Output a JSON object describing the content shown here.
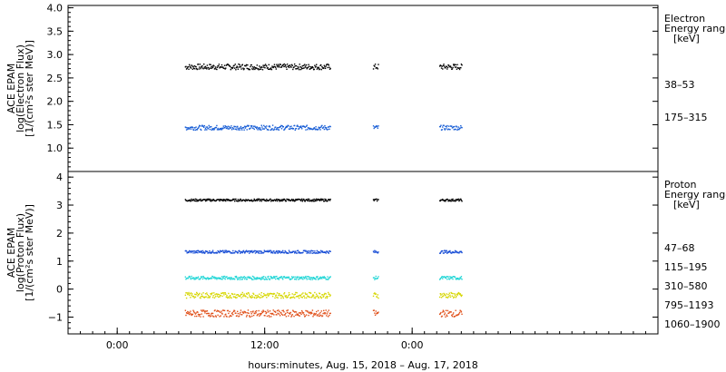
{
  "chart_data": [
    {
      "type": "scatter",
      "ylabel_lines": [
        "ACE EPAM",
        "log(Electron Flux)",
        "[1/(cm²s ster MeV)]"
      ],
      "ylim": [
        0.5,
        4.05
      ],
      "yticks": [
        "1.0",
        "1.5",
        "2.0",
        "2.5",
        "3.0",
        "3.5",
        "4.0"
      ],
      "legend": {
        "title_lines": [
          "Electron",
          "Energy ranges",
          "[keV]"
        ],
        "entries": [
          "38–53",
          "175–315"
        ]
      },
      "series": [
        {
          "name": "38–53",
          "color": "#000000",
          "value": 2.75,
          "jitter": 0.06
        },
        {
          "name": "175–315",
          "color": "#1a5fd6",
          "value": 1.45,
          "jitter": 0.05
        }
      ]
    },
    {
      "type": "scatter",
      "ylabel_lines": [
        "ACE EPAM",
        "log(Proton Flux)",
        "[1/(cm²s ster MeV)]"
      ],
      "ylim": [
        -1.6,
        4.2
      ],
      "yticks": [
        "−1",
        "0",
        "1",
        "2",
        "3",
        "4"
      ],
      "legend": {
        "title_lines": [
          "Proton",
          "Energy ranges",
          "[keV]"
        ],
        "entries": [
          "47–68",
          "115–195",
          "310–580",
          "795–1193",
          "1060–1900"
        ]
      },
      "series": [
        {
          "name": "47–68",
          "color": "#000000",
          "value": 3.2,
          "jitter": 0.04
        },
        {
          "name": "115–195",
          "color": "#1a4fd6",
          "value": 1.35,
          "jitter": 0.05
        },
        {
          "name": "310–580",
          "color": "#22d6d6",
          "value": 0.42,
          "jitter": 0.06
        },
        {
          "name": "795–1193",
          "color": "#d6d600",
          "value": -0.2,
          "jitter": 0.1
        },
        {
          "name": "1060–1900",
          "color": "#e0501a",
          "value": -0.85,
          "jitter": 0.12
        }
      ]
    }
  ],
  "x_axis": {
    "label": "hours:minutes, Aug. 15, 2018 – Aug. 17, 2018",
    "range_hours": [
      -4,
      44
    ],
    "ticks": [
      {
        "hour": 0,
        "label": "0:00"
      },
      {
        "hour": 12,
        "label": "12:00"
      },
      {
        "hour": 24,
        "label": "0:00"
      }
    ],
    "minor_tick_interval_hours": 1
  },
  "data_segments_hours": [
    [
      5.5,
      17.3
    ],
    [
      20.8,
      21.2
    ],
    [
      26.2,
      28.0
    ]
  ]
}
